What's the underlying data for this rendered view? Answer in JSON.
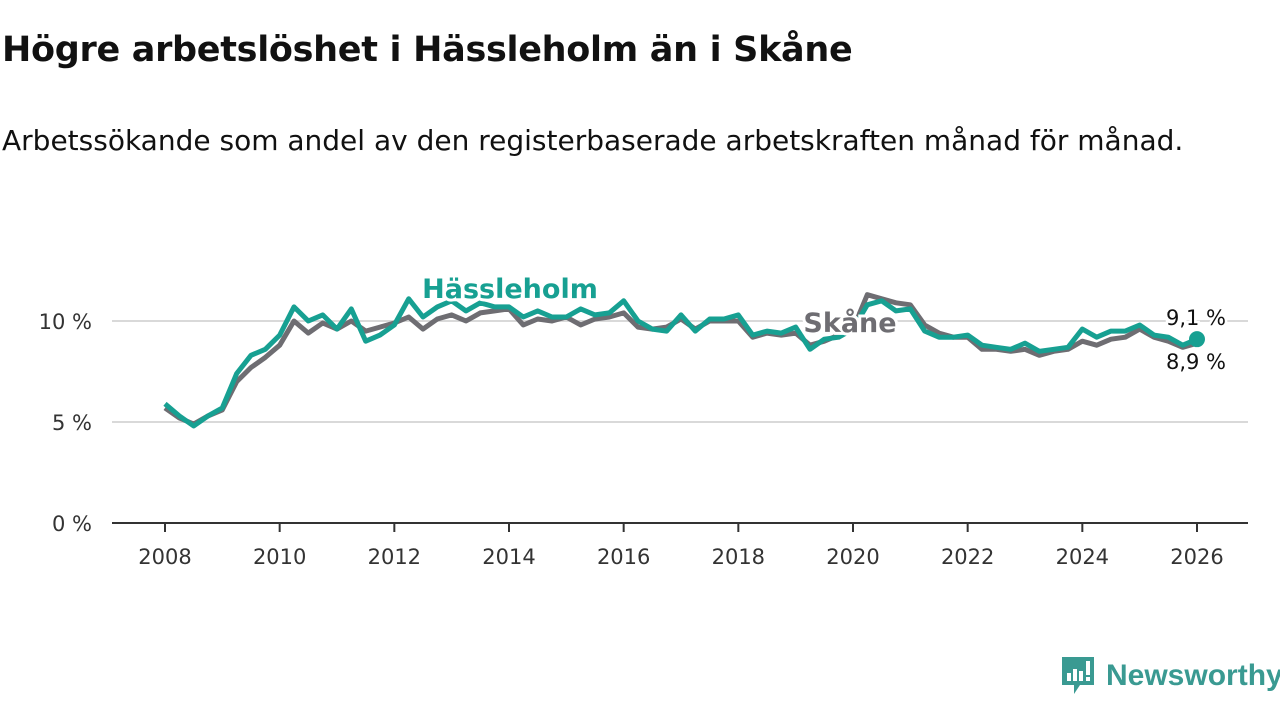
{
  "title": "Högre arbetslöshet i Hässleholm än i Skåne",
  "subtitle": "Arbetssökande som andel av den registerbaserade arbetskraften månad för månad.",
  "brand": "Newsworthy",
  "colors": {
    "hassleholm": "#17a092",
    "skane": "#6e6d72",
    "grid": "#d9d9d9",
    "axis": "#333333",
    "brand": "#3a9a92"
  },
  "chart_data": {
    "type": "line",
    "title": "Högre arbetslöshet i Hässleholm än i Skåne",
    "xlabel": "",
    "ylabel": "",
    "xlim": [
      2008,
      2026
    ],
    "ylim": [
      0,
      12
    ],
    "x_ticks": [
      2008,
      2010,
      2012,
      2014,
      2016,
      2018,
      2020,
      2022,
      2024,
      2026
    ],
    "x_tick_labels": [
      "2008",
      "2010",
      "2012",
      "2014",
      "2016",
      "2018",
      "2020",
      "2022",
      "2024",
      "2026"
    ],
    "y_ticks": [
      0,
      5,
      10
    ],
    "y_tick_labels": [
      "0 %",
      "5 %",
      "10 %"
    ],
    "grid": true,
    "x_start": 2008,
    "x_step": 0.25,
    "series": [
      {
        "name": "Skåne",
        "color": "#6e6d72",
        "end_label": "8,9 %",
        "values": [
          5.7,
          5.2,
          4.9,
          5.3,
          5.6,
          7.0,
          7.7,
          8.2,
          8.8,
          10.0,
          9.4,
          9.9,
          9.6,
          10.0,
          9.5,
          9.7,
          9.9,
          10.2,
          9.6,
          10.1,
          10.3,
          10.0,
          10.4,
          10.5,
          10.6,
          9.8,
          10.1,
          10.0,
          10.2,
          9.8,
          10.1,
          10.2,
          10.4,
          9.7,
          9.6,
          9.7,
          10.1,
          9.6,
          10.0,
          10.0,
          10.0,
          9.2,
          9.4,
          9.3,
          9.4,
          8.8,
          9.0,
          9.3,
          9.6,
          11.3,
          11.1,
          10.9,
          10.8,
          9.8,
          9.4,
          9.2,
          9.2,
          8.6,
          8.6,
          8.5,
          8.6,
          8.3,
          8.5,
          8.6,
          9.0,
          8.8,
          9.1,
          9.2,
          9.6,
          9.2,
          9.0,
          8.7,
          8.9
        ]
      },
      {
        "name": "Hässleholm",
        "color": "#17a092",
        "end_label": "9,1 %",
        "values": [
          5.9,
          5.3,
          4.8,
          5.3,
          5.7,
          7.4,
          8.3,
          8.6,
          9.3,
          10.7,
          10.0,
          10.3,
          9.6,
          10.6,
          9.0,
          9.3,
          9.8,
          11.1,
          10.2,
          10.7,
          11.0,
          10.5,
          10.9,
          10.7,
          10.7,
          10.2,
          10.5,
          10.2,
          10.2,
          10.6,
          10.3,
          10.4,
          11.0,
          10.0,
          9.6,
          9.5,
          10.3,
          9.5,
          10.1,
          10.1,
          10.3,
          9.3,
          9.5,
          9.4,
          9.7,
          8.6,
          9.1,
          9.2,
          9.6,
          10.8,
          11.0,
          10.5,
          10.6,
          9.5,
          9.2,
          9.2,
          9.3,
          8.8,
          8.7,
          8.6,
          8.9,
          8.5,
          8.6,
          8.7,
          9.6,
          9.2,
          9.5,
          9.5,
          9.8,
          9.3,
          9.2,
          8.8,
          9.1
        ]
      }
    ],
    "series_labels": {
      "hassleholm": "Hässleholm",
      "skane": "Skåne"
    }
  }
}
